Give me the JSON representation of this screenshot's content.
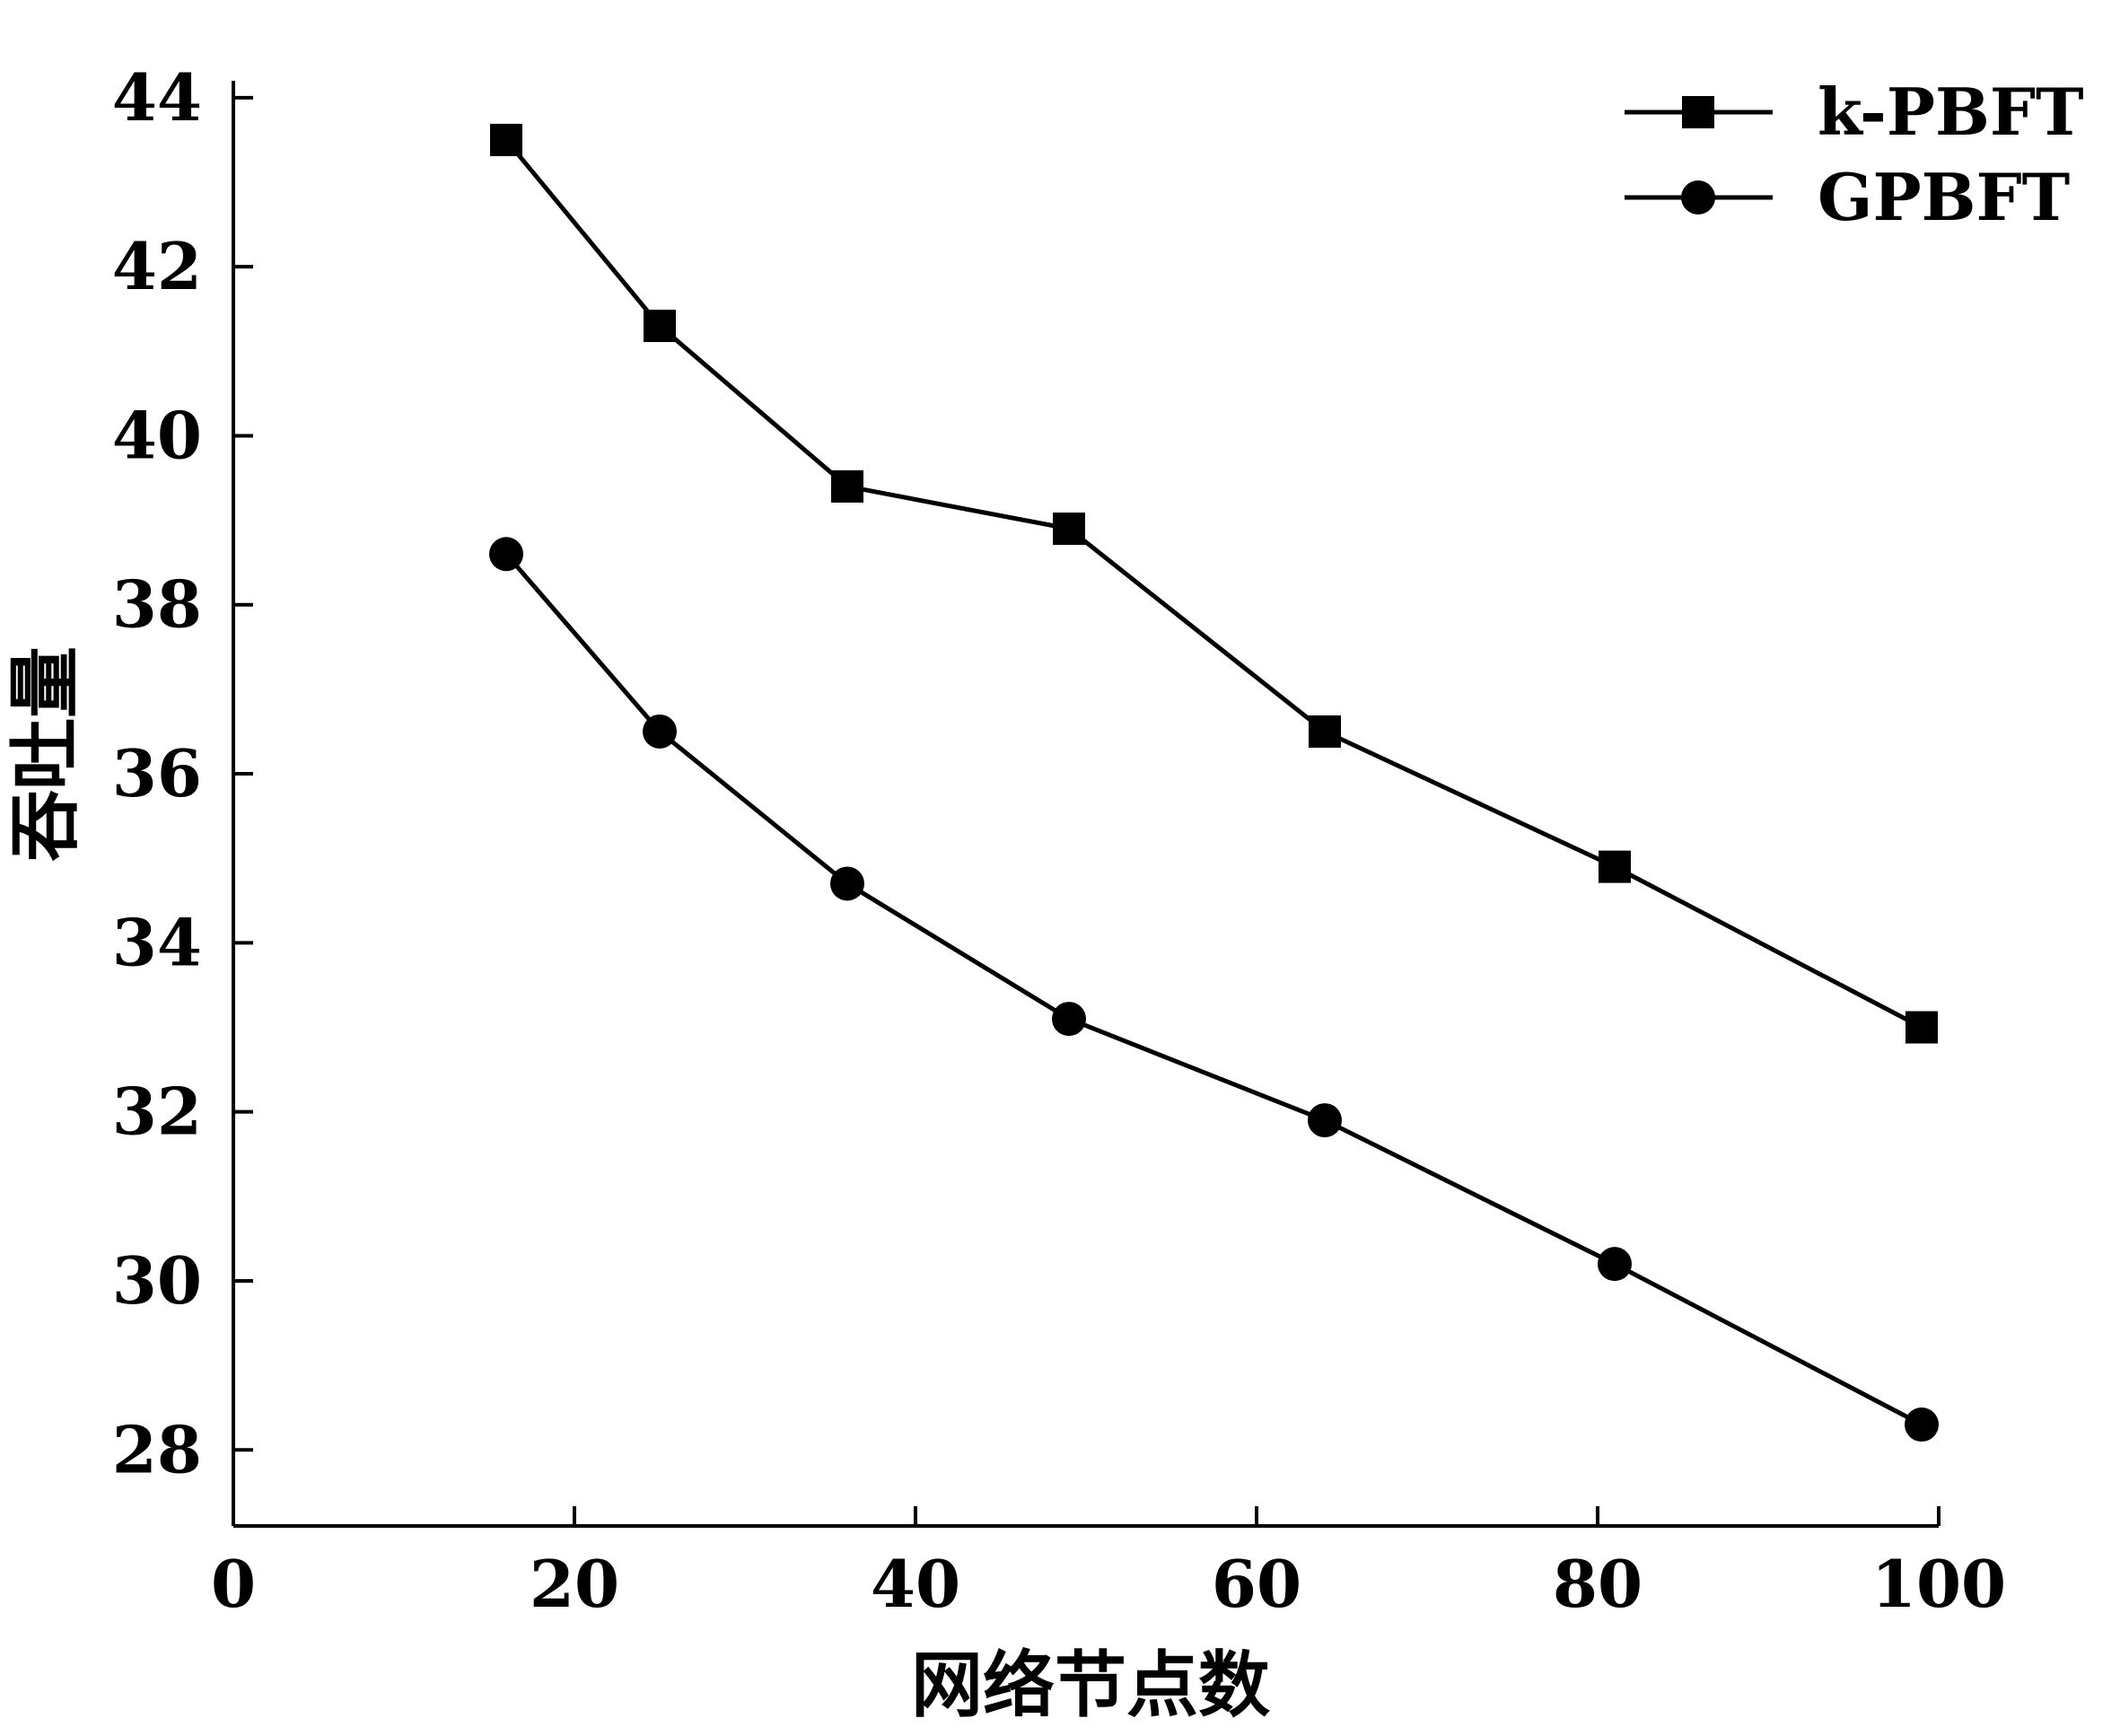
{
  "chart_data": {
    "type": "line",
    "title": "",
    "xlabel": "网络节点数",
    "ylabel": "吞吐量",
    "xlim": [
      0,
      100
    ],
    "ylim": [
      27.1,
      44.2
    ],
    "x_ticks": [
      0,
      20,
      40,
      60,
      80,
      100
    ],
    "x_tick_labels": [
      "0",
      "20",
      "40",
      "60",
      "80",
      "100"
    ],
    "y_ticks": [
      28,
      30,
      32,
      34,
      36,
      38,
      40,
      42,
      44
    ],
    "y_tick_labels": [
      "28",
      "30",
      "32",
      "34",
      "36",
      "38",
      "40",
      "42",
      "44"
    ],
    "grid": false,
    "legend_position": "top-right",
    "series": [
      {
        "name": "k-PBFT",
        "marker": "square",
        "color": "#000000",
        "x": [
          16,
          25,
          36,
          49,
          64,
          81,
          99
        ],
        "y": [
          43.5,
          41.3,
          39.4,
          38.9,
          36.5,
          34.9,
          33.0
        ]
      },
      {
        "name": "GPBFT",
        "marker": "circle",
        "color": "#000000",
        "x": [
          16,
          25,
          36,
          49,
          64,
          81,
          99
        ],
        "y": [
          38.6,
          36.5,
          34.7,
          33.1,
          31.9,
          30.2,
          28.3
        ]
      }
    ]
  }
}
